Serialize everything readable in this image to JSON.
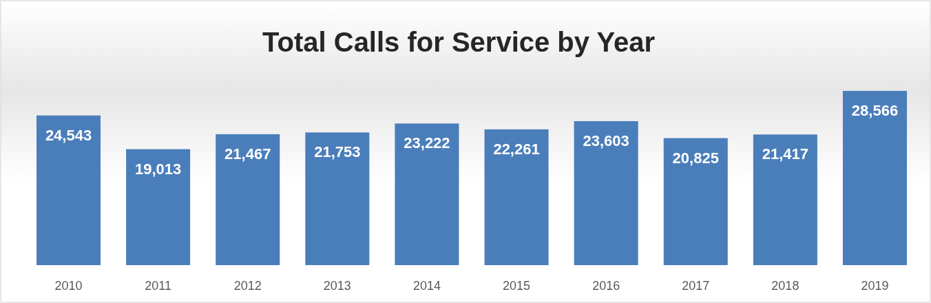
{
  "chart_data": {
    "type": "bar",
    "title": "Total Calls for Service by Year",
    "categories": [
      "2010",
      "2011",
      "2012",
      "2013",
      "2014",
      "2015",
      "2016",
      "2017",
      "2018",
      "2019"
    ],
    "values": [
      24543,
      19013,
      21467,
      21753,
      23222,
      22261,
      23603,
      20825,
      21417,
      28566
    ],
    "value_labels": [
      "24,543",
      "19,013",
      "21,467",
      "21,753",
      "23,222",
      "22,261",
      "23,603",
      "20,825",
      "21,417",
      "28,566"
    ],
    "color": "#4a7ebb"
  }
}
